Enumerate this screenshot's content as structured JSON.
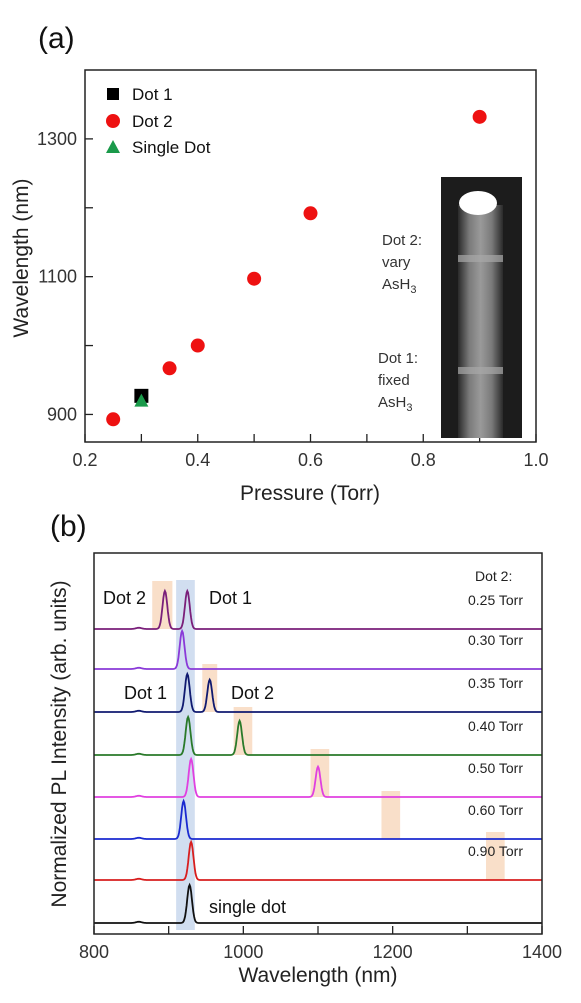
{
  "chart_data": [
    {
      "panel": "(a)",
      "type": "scatter",
      "xlabel": "Pressure (Torr)",
      "ylabel": "Wavelength (nm)",
      "xlim": [
        0.2,
        1.0
      ],
      "ylim": [
        860,
        1400
      ],
      "xticks": [
        "0.2",
        "0.4",
        "0.6",
        "0.8",
        "1.0"
      ],
      "yticks": [
        "900",
        "1100",
        "1300"
      ],
      "legend_position": "top-left",
      "series": [
        {
          "name": "Dot 1",
          "marker": "square",
          "color": "#000000",
          "points": [
            [
              0.3,
              927
            ]
          ]
        },
        {
          "name": "Dot 2",
          "marker": "circle",
          "color": "#ee1111",
          "points": [
            [
              0.25,
              893
            ],
            [
              0.35,
              967
            ],
            [
              0.4,
              1000
            ],
            [
              0.5,
              1097
            ],
            [
              0.6,
              1192
            ],
            [
              0.9,
              1332
            ]
          ]
        },
        {
          "name": "Single Dot",
          "marker": "triangle",
          "color": "#1a9a4a",
          "points": [
            [
              0.3,
              920
            ]
          ]
        }
      ],
      "inset": {
        "labels": [
          {
            "text": "Dot 2:",
            "line2": "vary",
            "chem": "AsH",
            "sub": "3"
          },
          {
            "text": "Dot 1:",
            "line2": "fixed",
            "chem": "AsH",
            "sub": "3"
          }
        ]
      }
    },
    {
      "panel": "(b)",
      "type": "line",
      "xlabel": "Wavelength (nm)",
      "ylabel": "Normalized PL Intensity (arb. units)",
      "xlim": [
        800,
        1400
      ],
      "xticks": [
        "800",
        "1000",
        "1200",
        "1400"
      ],
      "header": "Dot 2:",
      "dot1_band": [
        910,
        935
      ],
      "series": [
        {
          "name": "0.25 Torr",
          "color": "#7a1f7a",
          "peaks": [
            [
              895,
              1.0
            ],
            [
              925,
              1.0
            ]
          ],
          "highlight": [
            878,
            905
          ]
        },
        {
          "name": "0.30 Torr",
          "color": "#8a3ad8",
          "peaks": [
            [
              918,
              1.0
            ]
          ],
          "highlight": []
        },
        {
          "name": "0.35 Torr",
          "color": "#101a70",
          "peaks": [
            [
              925,
              1.0
            ],
            [
              955,
              0.85
            ]
          ],
          "highlight": [
            945,
            965
          ]
        },
        {
          "name": "0.40 Torr",
          "color": "#2a7a2a",
          "peaks": [
            [
              926,
              1.0
            ],
            [
              995,
              0.9
            ]
          ],
          "highlight": [
            987,
            1012
          ]
        },
        {
          "name": "0.50 Torr",
          "color": "#e040e0",
          "peaks": [
            [
              930,
              1.0
            ],
            [
              1100,
              0.8
            ]
          ],
          "highlight": [
            1090,
            1115
          ]
        },
        {
          "name": "0.60 Torr",
          "color": "#1a2ad0",
          "peaks": [
            [
              920,
              1.0
            ]
          ],
          "highlight": [
            1185,
            1210
          ]
        },
        {
          "name": "0.90 Torr",
          "color": "#d81e1e",
          "peaks": [
            [
              930,
              1.0
            ]
          ],
          "highlight": [
            1325,
            1350
          ]
        },
        {
          "name": "single dot",
          "color": "#111111",
          "peaks": [
            [
              928,
              1.0
            ]
          ],
          "highlight": []
        }
      ],
      "annotations": {
        "top_left": "Dot 2",
        "top_right": "Dot 1",
        "mid_left": "Dot 1",
        "mid_right": "Dot 2"
      }
    }
  ]
}
